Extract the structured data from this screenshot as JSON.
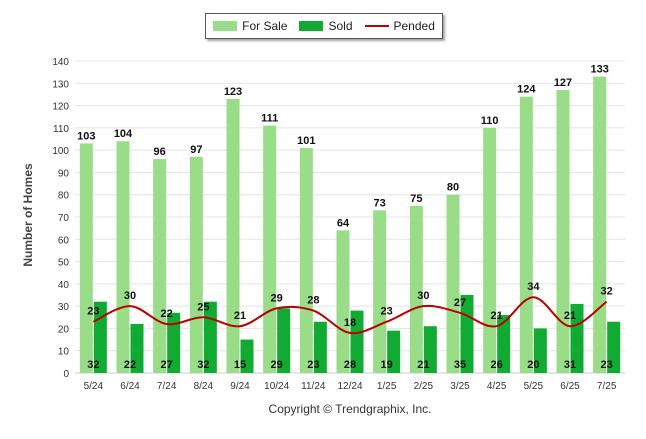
{
  "legend": {
    "for_sale": "For Sale",
    "sold": "Sold",
    "pended": "Pended"
  },
  "copyright": "Copyright © Trendgraphix, Inc.",
  "chart_data": {
    "type": "bar",
    "categories": [
      "5/24",
      "6/24",
      "7/24",
      "8/24",
      "9/24",
      "10/24",
      "11/24",
      "12/24",
      "1/25",
      "2/25",
      "3/25",
      "4/25",
      "5/25",
      "6/25",
      "7/25"
    ],
    "series": [
      {
        "name": "For Sale",
        "type": "bar",
        "color": "#99dd88",
        "values": [
          103,
          104,
          96,
          97,
          123,
          111,
          101,
          64,
          73,
          75,
          80,
          110,
          124,
          127,
          133
        ]
      },
      {
        "name": "Sold",
        "type": "bar",
        "color": "#11aa33",
        "values": [
          32,
          22,
          27,
          32,
          15,
          29,
          23,
          28,
          19,
          21,
          35,
          26,
          20,
          31,
          23
        ]
      },
      {
        "name": "Pended",
        "type": "line",
        "color": "#bb0000",
        "values": [
          23,
          30,
          22,
          25,
          21,
          29,
          28,
          18,
          23,
          30,
          27,
          21,
          34,
          21,
          32
        ]
      }
    ],
    "ylabel": "Number of Homes",
    "xlabel": "",
    "ylim": [
      0,
      140
    ],
    "yticks": [
      0,
      10,
      20,
      30,
      40,
      50,
      60,
      70,
      80,
      90,
      100,
      110,
      120,
      130,
      140
    ],
    "grid": true,
    "legend_position": "top-center"
  }
}
